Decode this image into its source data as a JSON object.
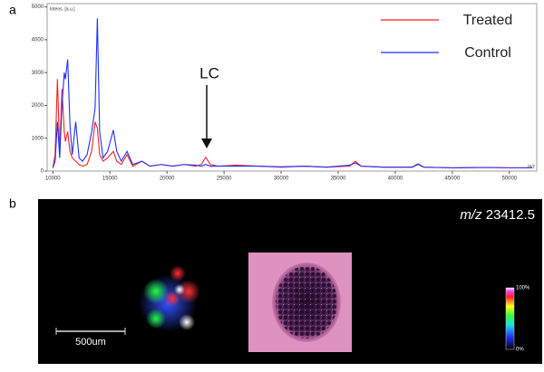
{
  "panel_labels": [
    "a",
    "b"
  ],
  "chart_data": {
    "type": "line",
    "y_label": "Intens. [a.u.]",
    "x_label": "m/z",
    "x": [
      10000,
      10200,
      10400,
      10600,
      10800,
      11000,
      11100,
      11300,
      11500,
      11700,
      12000,
      12300,
      12600,
      13000,
      13400,
      13700,
      13900,
      14100,
      14400,
      14800,
      15300,
      15600,
      16000,
      16500,
      17000,
      17800,
      18500,
      19500,
      20500,
      21500,
      22500,
      23000,
      23400,
      23800,
      24500,
      26000,
      28000,
      30000,
      32000,
      34000,
      36000,
      36500,
      37000,
      39000,
      41500,
      42000,
      42500,
      45000,
      48000,
      50000,
      52000
    ],
    "series": [
      {
        "name": "Treated",
        "color": "#ff2020",
        "values": [
          100,
          500,
          2800,
          600,
          2500,
          1200,
          900,
          1200,
          600,
          400,
          300,
          200,
          150,
          200,
          600,
          1500,
          1300,
          500,
          300,
          400,
          600,
          300,
          200,
          500,
          150,
          300,
          150,
          200,
          150,
          200,
          150,
          200,
          420,
          200,
          150,
          180,
          150,
          120,
          150,
          120,
          150,
          300,
          150,
          120,
          120,
          200,
          120,
          100,
          110,
          100,
          100
        ]
      },
      {
        "name": "Control",
        "color": "#2030ff",
        "values": [
          100,
          300,
          1500,
          400,
          2000,
          3000,
          2800,
          3400,
          1400,
          500,
          1500,
          400,
          300,
          500,
          1200,
          1900,
          4650,
          1200,
          400,
          600,
          1250,
          600,
          300,
          600,
          200,
          300,
          150,
          200,
          150,
          200,
          180,
          150,
          200,
          150,
          150,
          150,
          150,
          130,
          150,
          120,
          180,
          250,
          150,
          120,
          120,
          220,
          120,
          100,
          110,
          100,
          100
        ]
      }
    ],
    "xlim": [
      9500,
      52400
    ],
    "ylim": [
      0,
      5100
    ],
    "xticks": [
      10000,
      15000,
      20000,
      25000,
      30000,
      35000,
      40000,
      45000,
      50000
    ],
    "yticks": [
      0,
      1000,
      2000,
      3000,
      4000,
      5000
    ],
    "legend": "upper right",
    "annotation": "LC"
  },
  "image_panel": {
    "title_italic": "m/z",
    "title_value": "23412.5",
    "scale_bar": "500um",
    "colorbar_top": "100%",
    "colorbar_bottom": "0%"
  }
}
